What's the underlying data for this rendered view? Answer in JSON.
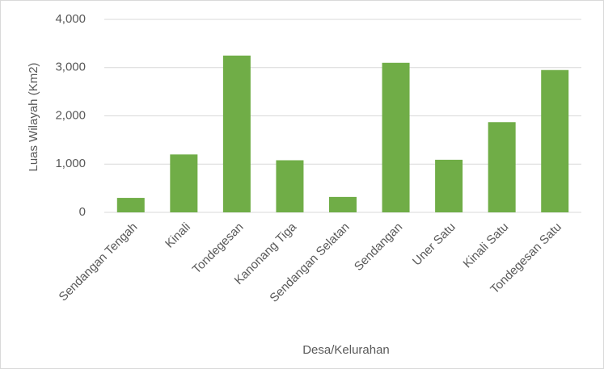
{
  "chart_data": {
    "type": "bar",
    "x_label": "Desa/Kelurahan",
    "y_label": "Luas Wilayah (Km2)",
    "categories": [
      "Sendangan Tengah",
      "Kinali",
      "Tondegesan",
      "Kanonang Tiga",
      "Sendangan Selatan",
      "Sendangan",
      "Uner Satu",
      "Kinali Satu",
      "Tondegesan Satu"
    ],
    "values": [
      300,
      1200,
      3250,
      1080,
      320,
      3100,
      1090,
      1870,
      2950
    ],
    "value_labels": [
      "300",
      "1,200",
      "3,250",
      "1,080",
      "320",
      "3,100",
      "1,090",
      "1,870",
      "2,950"
    ],
    "color": "#70ad47",
    "ylim": [
      0,
      4000
    ],
    "yticks": [
      0,
      {
        "value": 1000,
        "label": "1,000"
      },
      {
        "value": 2000,
        "label": "2,000"
      },
      {
        "value": 3000,
        "label": "3,000"
      },
      {
        "value": 4000,
        "label": "4,000"
      }
    ],
    "grid": true
  }
}
